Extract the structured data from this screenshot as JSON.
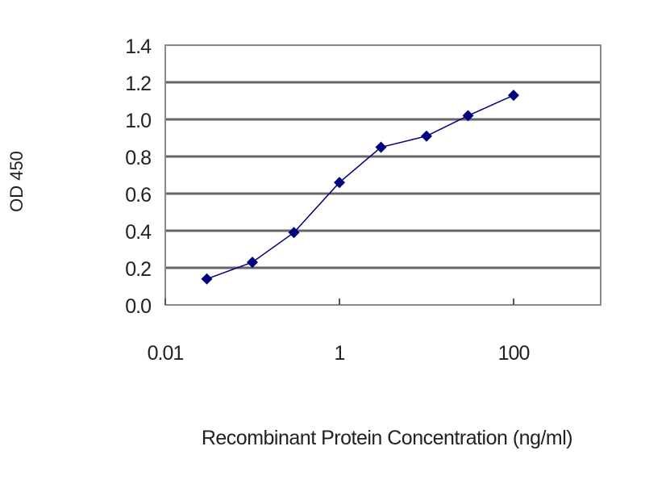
{
  "chart_data": {
    "type": "line",
    "title": "",
    "xlabel": "Recombinant Protein Concentration (ng/ml)",
    "ylabel": "OD 450",
    "x_scale": "log",
    "xlim": [
      0.01,
      1000
    ],
    "ylim": [
      0,
      1.4
    ],
    "x_ticks": [
      0.01,
      1,
      100
    ],
    "x_tick_labels": [
      "0.01",
      "1",
      "100"
    ],
    "y_ticks": [
      0,
      0.2,
      0.4,
      0.6,
      0.8,
      1.0,
      1.2,
      1.4
    ],
    "y_tick_labels": [
      "0.0",
      "0.2",
      "0.4",
      "0.6",
      "0.8",
      "1.0",
      "1.2",
      "1.4"
    ],
    "grid": "horizontal",
    "series": [
      {
        "x": [
          0.03,
          0.1,
          0.3,
          1,
          3,
          10,
          30,
          100
        ],
        "y": [
          0.14,
          0.23,
          0.39,
          0.66,
          0.85,
          0.91,
          1.02,
          1.13
        ],
        "marker": "diamond",
        "color": "#00007f"
      }
    ],
    "colors": {
      "gridline": "#666666",
      "frame": "#8a8a8a",
      "series": "#00007f"
    }
  }
}
